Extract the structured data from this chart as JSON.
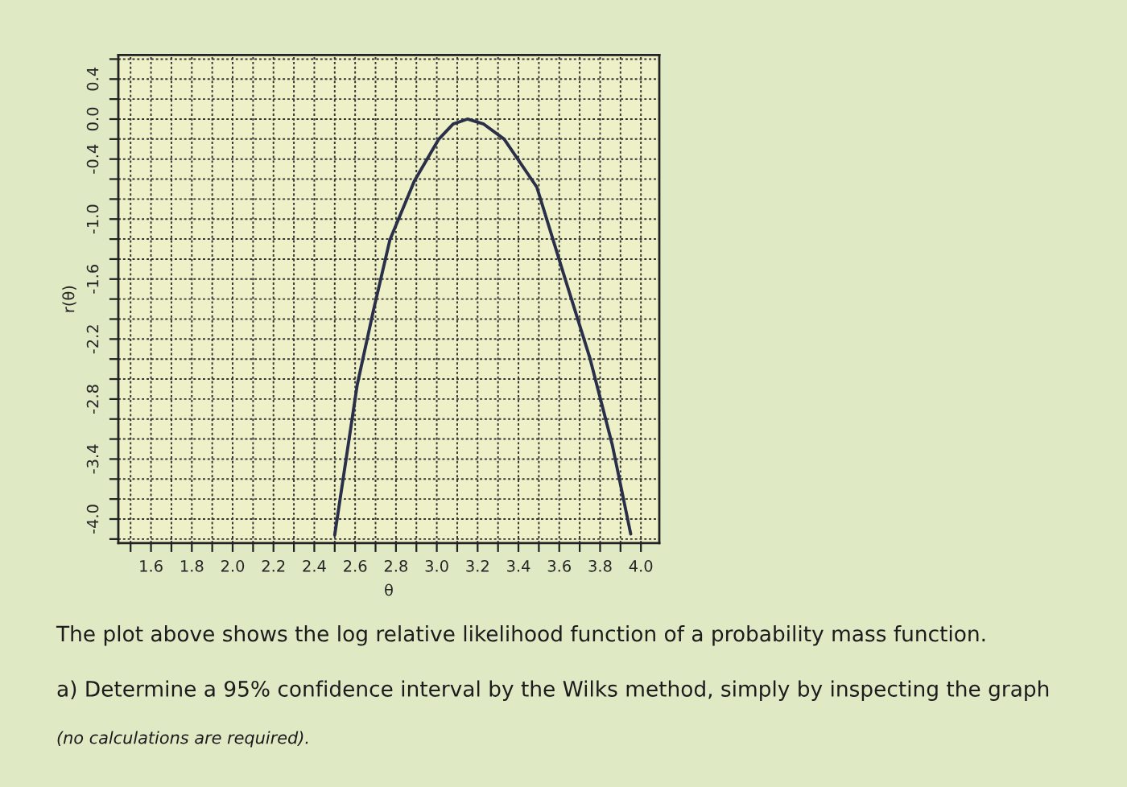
{
  "chart_data": {
    "type": "line",
    "xlabel": "θ",
    "ylabel": "r(θ)",
    "x": [
      2.5,
      2.61,
      2.69,
      2.77,
      2.89,
      3.01,
      3.08,
      3.15,
      3.23,
      3.33,
      3.49,
      3.62,
      3.75,
      3.86,
      3.95
    ],
    "series": [
      {
        "color": "#2a2f4a",
        "values": [
          -4.16,
          -2.66,
          -1.91,
          -1.21,
          -0.62,
          -0.2,
          -0.05,
          0.0,
          -0.05,
          -0.2,
          -0.68,
          -1.54,
          -2.39,
          -3.26,
          -4.15
        ]
      }
    ],
    "xlim": [
      1.44,
      4.09
    ],
    "ylim": [
      -4.24,
      0.64
    ],
    "xticks": [
      {
        "value": 1.5,
        "label": null
      },
      1.6,
      {
        "value": 1.7,
        "label": null
      },
      1.8,
      {
        "value": 1.9,
        "label": null
      },
      {
        "value": 2.0,
        "label": "2.0"
      },
      {
        "value": 2.1,
        "label": null
      },
      2.2,
      {
        "value": 2.3,
        "label": null
      },
      2.4,
      {
        "value": 2.5,
        "label": null
      },
      2.6,
      {
        "value": 2.7,
        "label": null
      },
      2.8,
      {
        "value": 2.9,
        "label": null
      },
      {
        "value": 3.0,
        "label": "3.0"
      },
      {
        "value": 3.1,
        "label": null
      },
      3.2,
      {
        "value": 3.3,
        "label": null
      },
      3.4,
      {
        "value": 3.5,
        "label": null
      },
      3.6,
      {
        "value": 3.7,
        "label": null
      },
      3.8,
      {
        "value": 3.9,
        "label": null
      },
      {
        "value": 4.0,
        "label": "4.0"
      }
    ],
    "yticks": [
      {
        "value": -4.2,
        "label": null
      },
      {
        "value": -4.0,
        "label": "-4.0"
      },
      {
        "value": -3.8,
        "label": null
      },
      {
        "value": -3.6,
        "label": null
      },
      -3.4,
      {
        "value": -3.2,
        "label": null
      },
      {
        "value": -3.0,
        "label": null
      },
      -2.8,
      {
        "value": -2.6,
        "label": null
      },
      {
        "value": -2.4,
        "label": null
      },
      -2.2,
      {
        "value": -2.0,
        "label": null
      },
      {
        "value": -1.8,
        "label": null
      },
      -1.6,
      {
        "value": -1.4,
        "label": null
      },
      {
        "value": -1.2,
        "label": null
      },
      {
        "value": -1.0,
        "label": "-1.0"
      },
      {
        "value": -0.8,
        "label": null
      },
      {
        "value": -0.6,
        "label": null
      },
      -0.4,
      {
        "value": -0.2,
        "label": null
      },
      {
        "value": 0.0,
        "label": "0.0"
      },
      {
        "value": 0.2,
        "label": null
      },
      0.4,
      {
        "value": 0.6,
        "label": null
      }
    ],
    "grid": true,
    "marker": "none",
    "line_style": "solid",
    "annotations": [
      "The plot above shows the log relative likelihood function of a probability mass function.",
      "a) Determine a 95% confidence interval by the Wilks method, simply by inspecting the graph",
      "(no calculations are required)."
    ]
  }
}
